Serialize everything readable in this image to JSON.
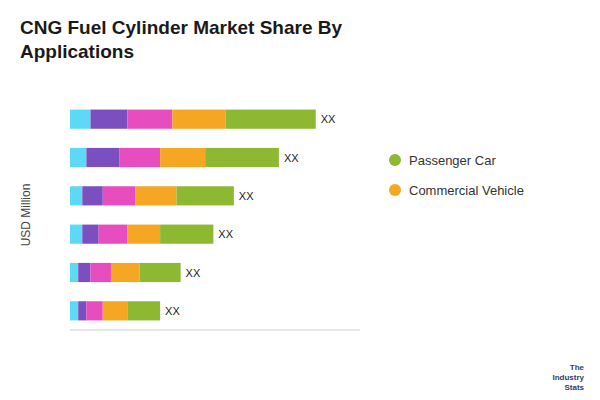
{
  "chart_data": {
    "type": "bar",
    "orientation": "horizontal",
    "stacked": true,
    "title": "CNG Fuel Cylinder Market Share By\nApplications",
    "y_label": "USD Million",
    "categories": [
      null,
      null,
      null,
      null,
      null,
      null
    ],
    "series": [
      {
        "color": "#5DD8F5",
        "values": [
          5,
          4,
          3,
          3,
          2,
          2
        ]
      },
      {
        "color": "#7B4FBF",
        "values": [
          9,
          8,
          5,
          4,
          3,
          2
        ]
      },
      {
        "color": "#E84DBF",
        "values": [
          11,
          10,
          8,
          7,
          5,
          4
        ]
      },
      {
        "name": "Commercial Vehicle",
        "color": "#F5A623",
        "values": [
          13,
          11,
          10,
          8,
          7,
          6
        ]
      },
      {
        "name": "Passenger Car",
        "color": "#8DB832",
        "values": [
          22,
          18,
          14,
          13,
          10,
          8
        ]
      }
    ],
    "xlim": [
      0,
      70.8
    ],
    "tick_labels": false,
    "grid": false,
    "legend": "right",
    "annotations": [
      {
        "text": "XX",
        "position": "bar-end"
      },
      {
        "text": "XX",
        "position": "bar-end"
      },
      {
        "text": "XX",
        "position": "bar-end"
      },
      {
        "text": "XX",
        "position": "bar-end"
      },
      {
        "text": "XX",
        "position": "bar-end"
      },
      {
        "text": "XX",
        "position": "bar-end"
      },
      {
        "text": "The\nIndustry\nStats",
        "position": "bottom-right"
      }
    ]
  }
}
